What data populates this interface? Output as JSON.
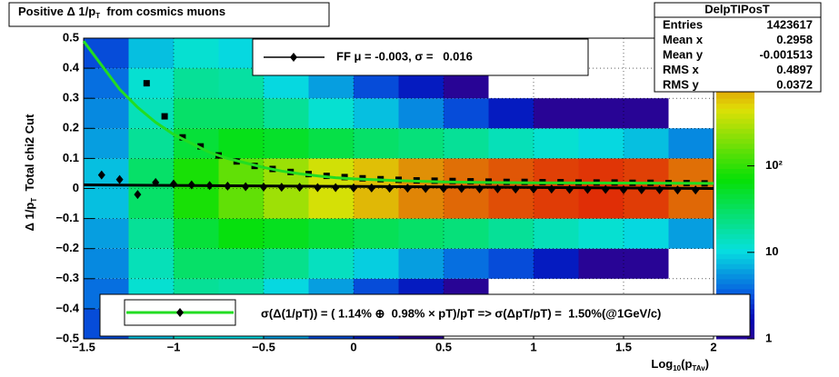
{
  "chart_data": {
    "type": "heatmap",
    "title": [
      "Positive Δ 1/p",
      "T",
      "  from cosmics muons"
    ],
    "xlabel": [
      "Log",
      "10",
      "(p",
      "TAv",
      ")"
    ],
    "ylabel": [
      "Δ 1/p",
      "T",
      "  Total chi2 Cut"
    ],
    "xlim": [
      -1.5,
      2
    ],
    "ylim": [
      -0.5,
      0.5
    ],
    "xticks": [
      {
        "value": -1.5,
        "label": "−1.5"
      },
      {
        "value": -1,
        "label": "−1"
      },
      {
        "value": -0.5,
        "label": "−0.5"
      },
      0,
      0.5,
      1,
      1.5,
      2
    ],
    "yticks": [
      {
        "value": -0.5,
        "label": "−0.5"
      },
      {
        "value": -0.4,
        "label": "−0.4"
      },
      {
        "value": -0.3,
        "label": "−0.3"
      },
      {
        "value": -0.2,
        "label": "−0.2"
      },
      {
        "value": -0.1,
        "label": "−0.1"
      },
      0,
      0.1,
      0.2,
      0.3,
      0.4,
      0.5
    ],
    "grid": true,
    "xbins": [
      -1.5,
      -1.25,
      -1,
      -0.75,
      -0.5,
      -0.25,
      0,
      0.25,
      0.5,
      0.75,
      1,
      1.25,
      1.5,
      1.75,
      2
    ],
    "ybins": [
      -0.5,
      -0.4,
      -0.3,
      -0.2,
      -0.1,
      0,
      0.1,
      0.2,
      0.3,
      0.4,
      0.5
    ],
    "z": [
      [
        3,
        8,
        12,
        10,
        6,
        3,
        2,
        1,
        0,
        0,
        0,
        0,
        0,
        0
      ],
      [
        4,
        12,
        20,
        18,
        10,
        6,
        3,
        2,
        1,
        0,
        0,
        0,
        0,
        0
      ],
      [
        5,
        15,
        30,
        30,
        22,
        14,
        9,
        6,
        4,
        3,
        2,
        1,
        1,
        0
      ],
      [
        6,
        20,
        45,
        65,
        55,
        45,
        35,
        30,
        25,
        20,
        15,
        12,
        10,
        6
      ],
      [
        8,
        30,
        80,
        150,
        260,
        420,
        650,
        1000,
        1300,
        1600,
        1900,
        2100,
        1900,
        1300
      ],
      [
        8,
        30,
        80,
        150,
        250,
        400,
        600,
        900,
        1200,
        1500,
        1800,
        2000,
        1800,
        1200
      ],
      [
        6,
        20,
        45,
        60,
        50,
        40,
        30,
        25,
        20,
        15,
        12,
        10,
        8,
        5
      ],
      [
        5,
        15,
        30,
        30,
        20,
        12,
        8,
        5,
        3,
        2,
        1,
        1,
        1,
        0
      ],
      [
        4,
        12,
        20,
        18,
        10,
        6,
        3,
        2,
        1,
        0,
        0,
        0,
        0,
        0
      ],
      [
        3,
        8,
        12,
        10,
        6,
        3,
        2,
        1,
        0,
        0,
        0,
        0,
        0,
        0
      ]
    ],
    "zlim": [
      1,
      3000
    ],
    "zticks": [
      1,
      10,
      {
        "value": 100,
        "label": "10²"
      }
    ],
    "zlog": true,
    "series": [
      {
        "name": "FF μ = -0.003, σ =   0.016",
        "color": "#000000",
        "marker": "diamond",
        "x": [
          -1.4,
          -1.3,
          -1.2,
          -1.1,
          -1,
          -0.9,
          -0.8,
          -0.7,
          -0.6,
          -0.5,
          -0.4,
          -0.3,
          -0.2,
          -0.1,
          0,
          0.1,
          0.2,
          0.3,
          0.4,
          0.5,
          0.6,
          0.7,
          0.8,
          0.9,
          1,
          1.1,
          1.2,
          1.3,
          1.4,
          1.5,
          1.6,
          1.7,
          1.8,
          1.9
        ],
        "values": [
          0.045,
          0.03,
          -0.02,
          0.02,
          0.015,
          0.012,
          0.01,
          0.008,
          0.006,
          0.005,
          0.004,
          0.004,
          0.003,
          0.003,
          0.002,
          0.002,
          0.001,
          0.001,
          0,
          0,
          0,
          -0.001,
          -0.001,
          -0.002,
          -0.002,
          -0.002,
          -0.003,
          -0.003,
          -0.003,
          -0.004,
          -0.004,
          -0.004,
          -0.005,
          -0.005
        ]
      },
      {
        "color": "#000000",
        "marker": "square",
        "x": [
          -1.15,
          -1.05,
          -0.95,
          -0.85,
          -0.75,
          -0.65,
          -0.55,
          -0.45,
          -0.35,
          -0.25,
          -0.15,
          -0.05,
          0.05,
          0.15,
          0.25,
          0.35,
          0.45,
          0.55,
          0.65,
          0.75,
          0.85,
          0.95,
          1.05,
          1.15,
          1.25,
          1.35,
          1.45,
          1.55,
          1.65,
          1.75,
          1.85,
          1.95
        ],
        "values": [
          0.35,
          0.24,
          0.17,
          0.14,
          0.11,
          0.09,
          0.075,
          0.065,
          0.055,
          0.048,
          0.042,
          0.038,
          0.034,
          0.031,
          0.029,
          0.027,
          0.026,
          0.025,
          0.024,
          0.023,
          0.022,
          0.022,
          0.021,
          0.021,
          0.02,
          0.02,
          0.02,
          0.019,
          0.019,
          0.018,
          0.018,
          0.017
        ]
      },
      {
        "name": "σ(Δ(1/pT)) = ( 1.14% ⊕  0.98% × pT)/pT => σ(ΔpT/pT) =  1.50%(@1GeV/c)",
        "color": "#22dd22",
        "marker": "line",
        "x": [
          -1.5,
          -1.4,
          -1.3,
          -1.2,
          -1.1,
          -1,
          -0.9,
          -0.8,
          -0.7,
          -0.6,
          -0.5,
          -0.4,
          -0.3,
          -0.2,
          -0.1,
          0,
          0.25,
          0.5,
          0.75,
          1,
          1.5,
          2
        ],
        "values": [
          0.49,
          0.41,
          0.33,
          0.27,
          0.22,
          0.18,
          0.15,
          0.12,
          0.1,
          0.085,
          0.07,
          0.058,
          0.049,
          0.042,
          0.036,
          0.032,
          0.026,
          0.022,
          0.02,
          0.019,
          0.018,
          0.017
        ]
      },
      {
        "color": "#000000",
        "marker": "line",
        "x": [
          -1.5,
          2
        ],
        "values": [
          0.012,
          0
        ]
      }
    ],
    "stats": {
      "title": "DelpTIPosT",
      "rows": [
        [
          "Entries",
          1423617
        ],
        [
          "Mean x",
          0.2958
        ],
        [
          "Mean y",
          -0.001513
        ],
        [
          "RMS x",
          0.4897
        ],
        [
          "RMS y",
          0.0372
        ]
      ]
    }
  }
}
